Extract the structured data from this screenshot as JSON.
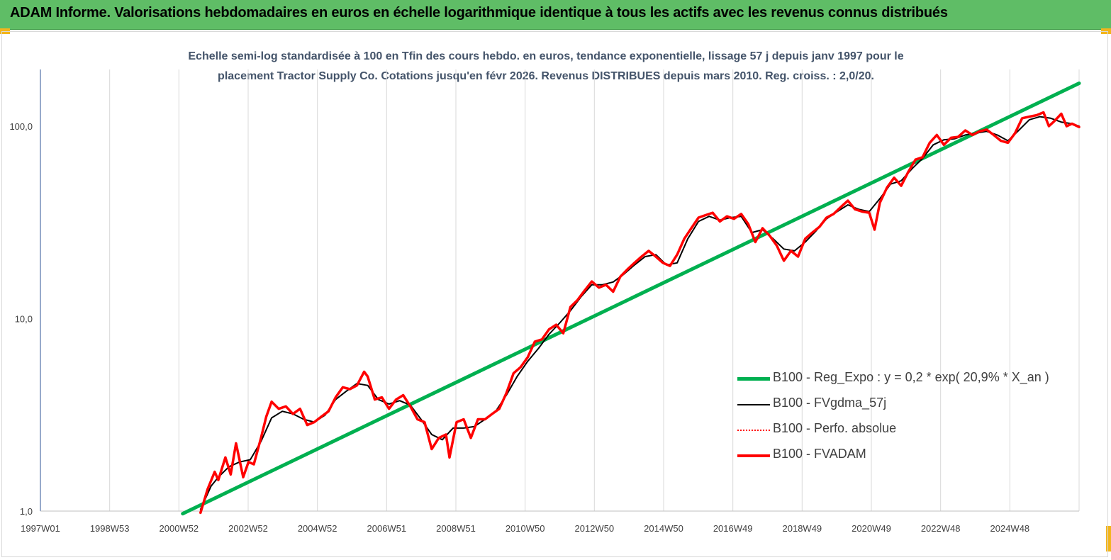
{
  "header": {
    "title": "ADAM Informe. Valorisations hebdomadaires en euros en échelle logarithmique identique à tous les actifs avec les revenus connus distribués"
  },
  "chart_data": {
    "type": "line",
    "title": "",
    "subtitle_lines": [
      "Echelle semi-log standardisée à 100 en Tfin des cours hebdo. en euros, tendance exponentielle, lissage 57 j depuis janv 1997 pour le",
      "placement Tractor Supply Co. Cotations jusqu'en févr 2026. Revenus DISTRIBUES depuis mars 2010. Reg. croiss. : 2,0/20."
    ],
    "y_scale": "log",
    "ylim": [
      1,
      190
    ],
    "y_ticks": [
      {
        "value": 1,
        "label": "1,0"
      },
      {
        "value": 10,
        "label": "10,0"
      },
      {
        "value": 100,
        "label": "100,0"
      }
    ],
    "x_ticks": [
      "1997W01",
      "1998W53",
      "2000W52",
      "2002W52",
      "2004W52",
      "2006W51",
      "2008W51",
      "2010W50",
      "2012W50",
      "2014W50",
      "2016W49",
      "2018W49",
      "2020W49",
      "2022W48",
      "2024W48"
    ],
    "x_domain": [
      1997.0,
      2026.2
    ],
    "grid": "vertical",
    "legend_position": "bottom-right",
    "series": [
      {
        "name": "B100 - Reg_Expo : y = 0,2 * exp( 20,9% *  X_an )",
        "color": "#00b050",
        "style": "thick",
        "points": [
          [
            2001.0,
            0.97
          ],
          [
            2026.2,
            167
          ]
        ]
      },
      {
        "name": "B100 - FVgdma_57j",
        "color": "#000000",
        "style": "thin",
        "points": [
          [
            2001.5,
            1.02
          ],
          [
            2001.8,
            1.35
          ],
          [
            2002.0,
            1.5
          ],
          [
            2002.3,
            1.7
          ],
          [
            2002.6,
            1.8
          ],
          [
            2002.9,
            1.85
          ],
          [
            2003.2,
            2.3
          ],
          [
            2003.5,
            3.05
          ],
          [
            2003.8,
            3.3
          ],
          [
            2004.1,
            3.2
          ],
          [
            2004.4,
            3.0
          ],
          [
            2004.7,
            2.9
          ],
          [
            2005.0,
            3.15
          ],
          [
            2005.3,
            3.8
          ],
          [
            2005.6,
            4.2
          ],
          [
            2005.9,
            4.6
          ],
          [
            2006.2,
            4.5
          ],
          [
            2006.5,
            3.8
          ],
          [
            2006.8,
            3.6
          ],
          [
            2007.1,
            3.75
          ],
          [
            2007.4,
            3.55
          ],
          [
            2007.7,
            3.0
          ],
          [
            2008.0,
            2.5
          ],
          [
            2008.3,
            2.35
          ],
          [
            2008.6,
            2.7
          ],
          [
            2008.9,
            2.7
          ],
          [
            2009.2,
            2.75
          ],
          [
            2009.5,
            3.0
          ],
          [
            2009.8,
            3.3
          ],
          [
            2010.1,
            4.0
          ],
          [
            2010.4,
            5.0
          ],
          [
            2010.7,
            6.0
          ],
          [
            2011.0,
            7.0
          ],
          [
            2011.3,
            8.3
          ],
          [
            2011.6,
            9.5
          ],
          [
            2011.9,
            11.0
          ],
          [
            2012.2,
            13.0
          ],
          [
            2012.5,
            15.0
          ],
          [
            2012.8,
            15.0
          ],
          [
            2013.1,
            15.5
          ],
          [
            2013.4,
            17.0
          ],
          [
            2013.7,
            19.0
          ],
          [
            2014.0,
            21.0
          ],
          [
            2014.3,
            21.5
          ],
          [
            2014.6,
            19.0
          ],
          [
            2014.9,
            19.5
          ],
          [
            2015.2,
            26.0
          ],
          [
            2015.5,
            32.0
          ],
          [
            2015.8,
            34.0
          ],
          [
            2016.1,
            32.5
          ],
          [
            2016.4,
            33.5
          ],
          [
            2016.7,
            34.0
          ],
          [
            2017.0,
            28.0
          ],
          [
            2017.3,
            29.0
          ],
          [
            2017.6,
            26.0
          ],
          [
            2017.9,
            23.0
          ],
          [
            2018.2,
            22.5
          ],
          [
            2018.5,
            25.0
          ],
          [
            2018.8,
            28.5
          ],
          [
            2019.1,
            33.0
          ],
          [
            2019.4,
            36.0
          ],
          [
            2019.7,
            39.0
          ],
          [
            2020.0,
            37.0
          ],
          [
            2020.3,
            36.0
          ],
          [
            2020.6,
            42.0
          ],
          [
            2020.9,
            50.0
          ],
          [
            2021.2,
            52.0
          ],
          [
            2021.5,
            60.0
          ],
          [
            2021.8,
            68.0
          ],
          [
            2022.1,
            80.0
          ],
          [
            2022.4,
            85.0
          ],
          [
            2022.7,
            86.0
          ],
          [
            2023.0,
            90.0
          ],
          [
            2023.3,
            92.0
          ],
          [
            2023.6,
            94.0
          ],
          [
            2023.9,
            90.0
          ],
          [
            2024.2,
            84.0
          ],
          [
            2024.5,
            95.0
          ],
          [
            2024.8,
            108.0
          ],
          [
            2025.1,
            112.0
          ],
          [
            2025.4,
            110.0
          ],
          [
            2025.7,
            105.0
          ],
          [
            2026.0,
            103.0
          ],
          [
            2026.2,
            100.0
          ]
        ]
      },
      {
        "name": "B100 - Perfo. absolue",
        "color": "#ff0000",
        "style": "dotted",
        "points": []
      },
      {
        "name": "B100 - FVADAM",
        "color": "#ff0000",
        "style": "thick",
        "points": [
          [
            2001.5,
            0.98
          ],
          [
            2001.7,
            1.3
          ],
          [
            2001.9,
            1.6
          ],
          [
            2002.0,
            1.45
          ],
          [
            2002.2,
            1.9
          ],
          [
            2002.35,
            1.55
          ],
          [
            2002.5,
            2.25
          ],
          [
            2002.7,
            1.5
          ],
          [
            2002.85,
            1.8
          ],
          [
            2003.0,
            1.75
          ],
          [
            2003.2,
            2.4
          ],
          [
            2003.35,
            3.1
          ],
          [
            2003.5,
            3.7
          ],
          [
            2003.7,
            3.4
          ],
          [
            2003.9,
            3.5
          ],
          [
            2004.1,
            3.2
          ],
          [
            2004.3,
            3.4
          ],
          [
            2004.5,
            2.8
          ],
          [
            2004.7,
            2.9
          ],
          [
            2004.9,
            3.1
          ],
          [
            2005.1,
            3.3
          ],
          [
            2005.3,
            3.9
          ],
          [
            2005.5,
            4.4
          ],
          [
            2005.7,
            4.3
          ],
          [
            2005.9,
            4.5
          ],
          [
            2006.1,
            5.3
          ],
          [
            2006.2,
            5.0
          ],
          [
            2006.4,
            3.8
          ],
          [
            2006.6,
            3.9
          ],
          [
            2006.8,
            3.4
          ],
          [
            2007.0,
            3.8
          ],
          [
            2007.2,
            4.0
          ],
          [
            2007.4,
            3.5
          ],
          [
            2007.6,
            3.0
          ],
          [
            2007.8,
            2.9
          ],
          [
            2008.0,
            2.1
          ],
          [
            2008.2,
            2.4
          ],
          [
            2008.4,
            2.5
          ],
          [
            2008.5,
            1.9
          ],
          [
            2008.7,
            2.9
          ],
          [
            2008.9,
            3.0
          ],
          [
            2009.1,
            2.4
          ],
          [
            2009.3,
            3.0
          ],
          [
            2009.5,
            3.0
          ],
          [
            2009.7,
            3.2
          ],
          [
            2009.9,
            3.4
          ],
          [
            2010.1,
            4.1
          ],
          [
            2010.3,
            5.2
          ],
          [
            2010.5,
            5.6
          ],
          [
            2010.7,
            6.3
          ],
          [
            2010.9,
            7.6
          ],
          [
            2011.1,
            7.8
          ],
          [
            2011.3,
            8.8
          ],
          [
            2011.5,
            9.3
          ],
          [
            2011.7,
            8.4
          ],
          [
            2011.9,
            11.5
          ],
          [
            2012.1,
            12.5
          ],
          [
            2012.3,
            14.0
          ],
          [
            2012.5,
            15.6
          ],
          [
            2012.7,
            14.5
          ],
          [
            2012.9,
            15.0
          ],
          [
            2013.1,
            13.8
          ],
          [
            2013.3,
            16.5
          ],
          [
            2013.5,
            18.0
          ],
          [
            2013.7,
            19.5
          ],
          [
            2013.9,
            21.0
          ],
          [
            2014.1,
            22.5
          ],
          [
            2014.3,
            21.0
          ],
          [
            2014.5,
            19.5
          ],
          [
            2014.7,
            18.8
          ],
          [
            2014.9,
            21.5
          ],
          [
            2015.1,
            26.0
          ],
          [
            2015.3,
            29.5
          ],
          [
            2015.5,
            33.5
          ],
          [
            2015.7,
            34.5
          ],
          [
            2015.9,
            35.5
          ],
          [
            2016.1,
            32.0
          ],
          [
            2016.3,
            34.0
          ],
          [
            2016.5,
            33.0
          ],
          [
            2016.7,
            35.0
          ],
          [
            2016.9,
            31.0
          ],
          [
            2017.1,
            25.0
          ],
          [
            2017.3,
            29.5
          ],
          [
            2017.5,
            27.0
          ],
          [
            2017.7,
            24.0
          ],
          [
            2017.9,
            20.0
          ],
          [
            2018.1,
            22.5
          ],
          [
            2018.3,
            21.0
          ],
          [
            2018.5,
            26.0
          ],
          [
            2018.7,
            28.0
          ],
          [
            2018.9,
            30.0
          ],
          [
            2019.1,
            33.5
          ],
          [
            2019.3,
            35.0
          ],
          [
            2019.5,
            38.0
          ],
          [
            2019.7,
            41.0
          ],
          [
            2019.9,
            37.0
          ],
          [
            2020.1,
            36.0
          ],
          [
            2020.3,
            35.5
          ],
          [
            2020.45,
            29.0
          ],
          [
            2020.6,
            40.0
          ],
          [
            2020.8,
            48.0
          ],
          [
            2021.0,
            54.0
          ],
          [
            2021.2,
            49.0
          ],
          [
            2021.4,
            58.0
          ],
          [
            2021.6,
            67.0
          ],
          [
            2021.8,
            69.0
          ],
          [
            2022.0,
            82.0
          ],
          [
            2022.2,
            90.0
          ],
          [
            2022.4,
            80.0
          ],
          [
            2022.6,
            87.0
          ],
          [
            2022.8,
            88.0
          ],
          [
            2023.0,
            95.0
          ],
          [
            2023.2,
            90.0
          ],
          [
            2023.4,
            94.0
          ],
          [
            2023.6,
            96.0
          ],
          [
            2023.8,
            90.0
          ],
          [
            2024.0,
            84.0
          ],
          [
            2024.2,
            82.0
          ],
          [
            2024.4,
            92.0
          ],
          [
            2024.6,
            110.0
          ],
          [
            2024.8,
            112.0
          ],
          [
            2025.0,
            114.0
          ],
          [
            2025.2,
            118.0
          ],
          [
            2025.35,
            100.0
          ],
          [
            2025.5,
            106.0
          ],
          [
            2025.7,
            116.0
          ],
          [
            2025.85,
            100.0
          ],
          [
            2026.0,
            103.0
          ],
          [
            2026.2,
            99.0
          ]
        ]
      }
    ]
  }
}
